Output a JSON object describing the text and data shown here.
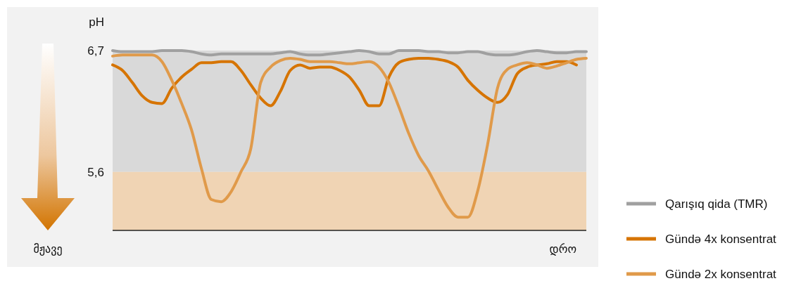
{
  "chart_data": {
    "type": "line",
    "ylabel": "pH",
    "xlabel": "დრო",
    "annotations": [
      "მჟავე"
    ],
    "categories": [
      null,
      null,
      null,
      null,
      null,
      null,
      null,
      null,
      null,
      null,
      null,
      null,
      null,
      null,
      null,
      null,
      null,
      null,
      null,
      null,
      null,
      null,
      null,
      null,
      null,
      null,
      null,
      null,
      null,
      null,
      null,
      null,
      null,
      null,
      null,
      null,
      null,
      null,
      null,
      null,
      null,
      null,
      null,
      null,
      null,
      null,
      null,
      null,
      null
    ],
    "series": [
      {
        "name": "Qarışıq qida (TMR)",
        "color": "#a0a0a0",
        "values": [
          6.7,
          6.69,
          6.69,
          6.69,
          6.69,
          6.7,
          6.7,
          6.7,
          6.69,
          6.67,
          6.66,
          6.67,
          6.67,
          6.67,
          6.67,
          6.67,
          6.67,
          6.68,
          6.69,
          6.67,
          6.66,
          6.66,
          6.67,
          6.68,
          6.69,
          6.7,
          6.69,
          6.67,
          6.67,
          6.7,
          6.7,
          6.7,
          6.69,
          6.69,
          6.68,
          6.68,
          6.69,
          6.69,
          6.67,
          6.66,
          6.66,
          6.67,
          6.69,
          6.7,
          6.69,
          6.68,
          6.68,
          6.69,
          6.69
        ]
      },
      {
        "name": "Gündə 4x konsentrat",
        "color": "#d67400",
        "values": [
          6.57,
          6.52,
          6.41,
          6.29,
          6.23,
          6.22,
          6.36,
          6.46,
          6.53,
          6.59,
          6.59,
          6.6,
          6.6,
          6.52,
          6.39,
          6.27,
          6.2,
          6.33,
          6.52,
          6.57,
          6.54,
          6.55,
          6.55,
          6.52,
          6.46,
          6.34,
          6.2,
          6.2,
          6.46,
          6.59,
          6.62,
          6.63,
          6.63,
          6.62,
          6.6,
          6.55,
          6.43,
          6.34,
          6.27,
          6.23,
          6.3,
          6.49,
          6.55,
          6.57,
          6.58,
          6.6,
          6.6,
          6.57,
          null
        ]
      },
      {
        "name": "Gündə 2x konsentrat",
        "color": "#e09a4a",
        "values": [
          6.65,
          6.66,
          6.66,
          6.66,
          6.66,
          6.6,
          6.43,
          6.22,
          5.98,
          5.63,
          5.35,
          5.33,
          5.42,
          5.6,
          5.81,
          6.41,
          6.55,
          6.61,
          6.63,
          6.62,
          6.6,
          6.6,
          6.6,
          6.59,
          6.58,
          6.59,
          6.6,
          6.55,
          6.41,
          6.19,
          5.95,
          5.75,
          5.61,
          5.44,
          5.28,
          5.19,
          5.19,
          5.43,
          5.85,
          6.36,
          6.53,
          6.57,
          6.59,
          6.57,
          6.54,
          6.56,
          6.59,
          6.62,
          6.63
        ]
      }
    ],
    "ylim": [
      5.07,
      6.7
    ],
    "yticks": [
      {
        "value": 5.6,
        "label": "5,6"
      },
      {
        "value": 6.7,
        "label": "6,7"
      }
    ],
    "bands": [
      {
        "axis": "y",
        "from": 5.6,
        "to": 6.7,
        "color": "#d9d9d9"
      },
      {
        "axis": "y",
        "from": 5.07,
        "to": 5.6,
        "color": "#f0d4b4"
      }
    ],
    "legend": "right",
    "line_style": "solid",
    "marker": "none"
  }
}
